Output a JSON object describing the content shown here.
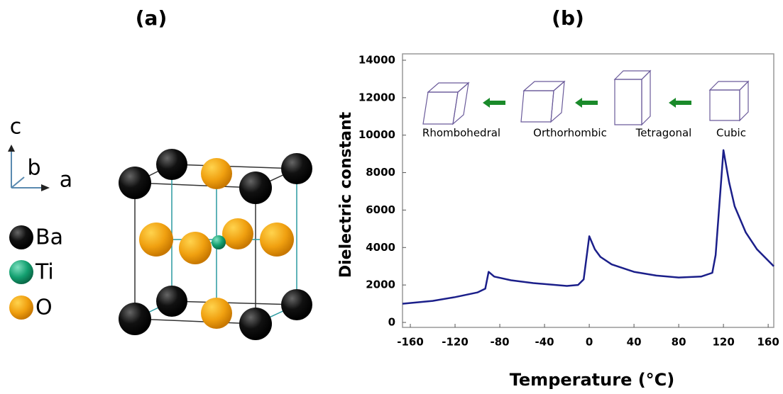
{
  "panel_a": {
    "label": "(a)",
    "axes": [
      "c",
      "b",
      "a"
    ],
    "legend": [
      "Ba",
      "Ti",
      "O"
    ]
  },
  "chart_data": {
    "type": "line",
    "title": "(b)",
    "x_label": "Temperature (°C)",
    "y_label": "Dielectric constant",
    "phases": [
      "Rhombohedral",
      "Orthorhombic",
      "Tetragonal",
      "Cubic"
    ],
    "x": [
      -167,
      -140,
      -120,
      -100,
      -93,
      -90,
      -85,
      -70,
      -50,
      -20,
      -10,
      -5,
      0,
      5,
      10,
      20,
      40,
      60,
      80,
      100,
      110,
      113,
      120,
      125,
      130,
      140,
      150,
      160,
      165
    ],
    "values": [
      1000,
      1150,
      1350,
      1600,
      1800,
      2700,
      2450,
      2250,
      2100,
      1950,
      2000,
      2300,
      4600,
      3900,
      3500,
      3100,
      2700,
      2500,
      2400,
      2450,
      2650,
      3600,
      9200,
      7500,
      6200,
      4800,
      3900,
      3300,
      3000
    ],
    "color": "#1b1f8a",
    "xlim": [
      -167,
      165
    ],
    "ylim": [
      0,
      14000
    ],
    "xticks": [
      -160,
      -120,
      -80,
      -40,
      0,
      40,
      80,
      120,
      160
    ],
    "yticks": [
      0,
      2000,
      4000,
      6000,
      8000,
      10000,
      12000,
      14000
    ]
  }
}
